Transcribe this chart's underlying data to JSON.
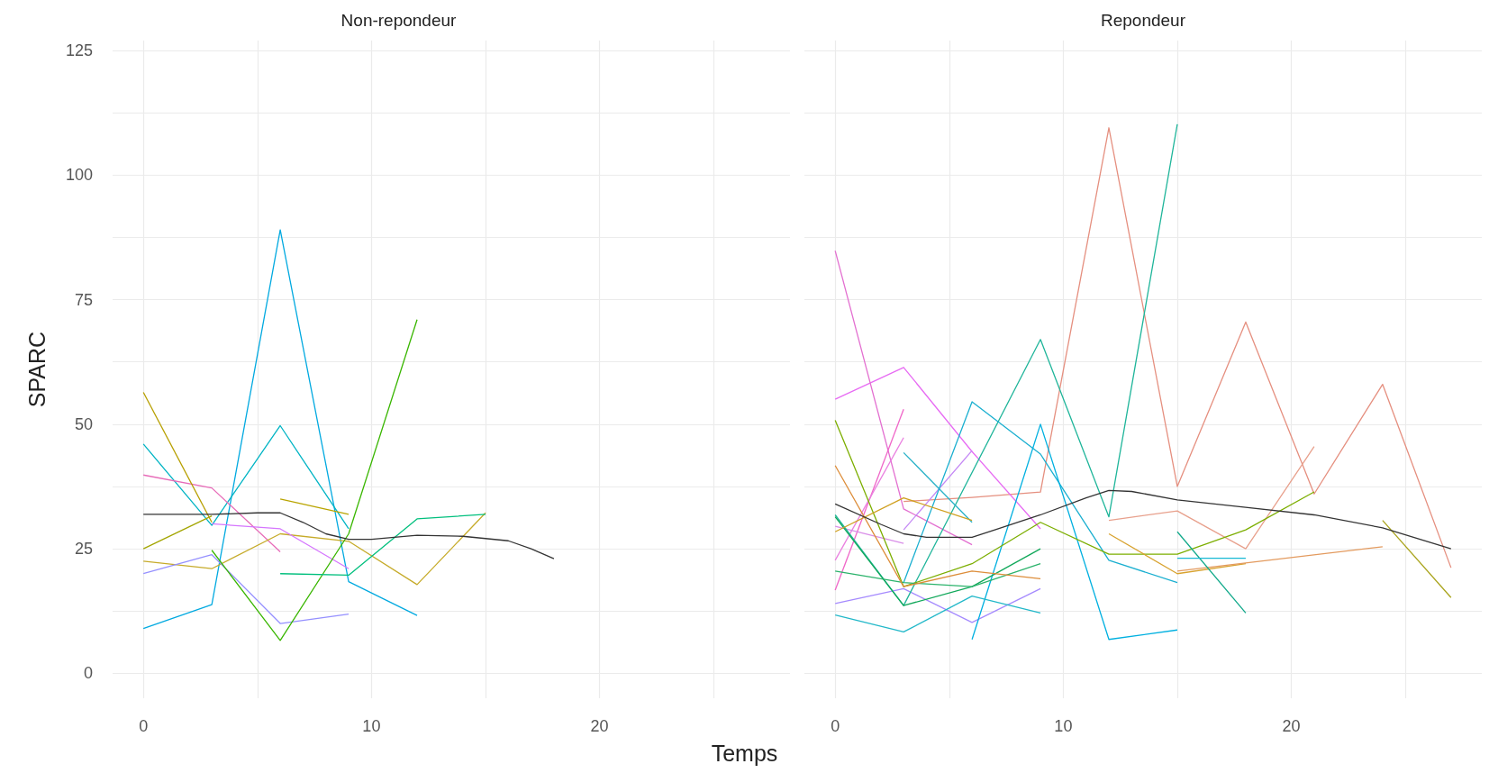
{
  "chart_data": [
    {
      "type": "line",
      "title": "Non-repondeur",
      "xlabel": "Temps",
      "ylabel": "SPARC",
      "xlim": [
        -1.35,
        28.35
      ],
      "xticks": [
        0,
        {
          "value": 5,
          "label": null
        },
        10,
        {
          "value": 15,
          "label": null
        },
        20,
        {
          "value": 25,
          "label": null
        }
      ],
      "ylim": [
        -5,
        127
      ],
      "yticks": [
        0,
        {
          "value": 12.5,
          "label": null
        },
        25,
        {
          "value": 37.5,
          "label": null
        },
        50,
        {
          "value": 62.5,
          "label": null
        },
        75,
        {
          "value": 87.5,
          "label": null
        },
        100,
        {
          "value": 112.5,
          "label": null
        },
        125
      ],
      "grid": true,
      "marker": "none",
      "line_style": "solid",
      "series": [
        {
          "color": "#00a9e0",
          "x": [
            0,
            3,
            6,
            9,
            12
          ],
          "values": [
            9,
            13.8,
            89,
            18.4,
            11.6
          ]
        },
        {
          "color": "#00b4c4",
          "x": [
            0,
            3,
            6,
            9
          ],
          "values": [
            46,
            29.7,
            49.7,
            29
          ]
        },
        {
          "color": "#e76bb8",
          "x": [
            0,
            3,
            6
          ],
          "values": [
            39.8,
            37.2,
            24.4
          ]
        },
        {
          "color": "#b79f00",
          "x": [
            0,
            3
          ],
          "values": [
            56.4,
            30.3
          ]
        },
        {
          "color": "#a3a500",
          "x": [
            0,
            3
          ],
          "values": [
            25,
            31.6
          ]
        },
        {
          "color": "#b9a400",
          "x": [
            6,
            9
          ],
          "values": [
            35,
            31.9
          ]
        },
        {
          "color": "#c6ab2a",
          "x": [
            0,
            3,
            6,
            9,
            12,
            15
          ],
          "values": [
            22.5,
            21,
            28,
            26.5,
            17.8,
            32.2
          ]
        },
        {
          "color": "#9590ff",
          "x": [
            0,
            3,
            6,
            9
          ],
          "values": [
            20,
            23.8,
            10,
            11.9
          ]
        },
        {
          "color": "#d575fe",
          "x": [
            3,
            6,
            9
          ],
          "values": [
            30,
            29,
            21
          ]
        },
        {
          "color": "#39b600",
          "x": [
            3,
            6,
            9,
            12
          ],
          "values": [
            24.7,
            6.6,
            28,
            71
          ]
        },
        {
          "color": "#00bf7d",
          "x": [
            6,
            9,
            12,
            15
          ],
          "values": [
            20,
            19.7,
            31,
            31.9
          ]
        },
        {
          "color": "#333333",
          "x": [
            0,
            3,
            5,
            6,
            7,
            8,
            9,
            10,
            12,
            14,
            16,
            17,
            18
          ],
          "values": [
            31.9,
            31.9,
            32.2,
            32.2,
            30.3,
            28,
            26.9,
            26.9,
            27.7,
            27.5,
            26.6,
            25,
            23
          ]
        }
      ]
    },
    {
      "type": "line",
      "title": "Repondeur",
      "xlim": [
        -1.35,
        28.35
      ],
      "xticks": [
        0,
        {
          "value": 5,
          "label": null
        },
        10,
        {
          "value": 15,
          "label": null
        },
        20,
        {
          "value": 25,
          "label": null
        }
      ],
      "ylim": [
        -5,
        127
      ],
      "yticks": [
        0,
        {
          "value": 12.5,
          "label": null
        },
        25,
        {
          "value": 37.5,
          "label": null
        },
        50,
        {
          "value": 62.5,
          "label": null
        },
        75,
        {
          "value": 87.5,
          "label": null
        },
        100,
        {
          "value": 112.5,
          "label": null
        },
        125
      ],
      "grid": true,
      "marker": "none",
      "line_style": "solid",
      "tick_labels": "x",
      "series": [
        {
          "color": "#e58f7f",
          "x": [
            3,
            6,
            9,
            12,
            15,
            18,
            21,
            24,
            27
          ],
          "values": [
            34.5,
            35.3,
            36.4,
            109.5,
            37.5,
            70.5,
            36,
            58,
            21.2
          ]
        },
        {
          "color": "#e8a08c",
          "x": [
            12,
            15,
            18,
            21
          ],
          "values": [
            30.7,
            32.6,
            25,
            45.5
          ]
        },
        {
          "color": "#e76bf3",
          "x": [
            0,
            3,
            6,
            9
          ],
          "values": [
            55,
            61.4,
            44.5,
            29
          ]
        },
        {
          "color": "#e36fd0",
          "x": [
            0,
            3,
            6
          ],
          "values": [
            84.8,
            33,
            25.8
          ]
        },
        {
          "color": "#f066c8",
          "x": [
            0,
            3
          ],
          "values": [
            16.7,
            53
          ]
        },
        {
          "color": "#ea7fe0",
          "x": [
            0,
            3
          ],
          "values": [
            22.7,
            47.3
          ]
        },
        {
          "color": "#d98ee8",
          "x": [
            0,
            3
          ],
          "values": [
            29.5,
            26.1
          ]
        },
        {
          "color": "#a58afe",
          "x": [
            0,
            3,
            6,
            9
          ],
          "values": [
            14,
            17,
            10.2,
            17
          ]
        },
        {
          "color": "#c487f5",
          "x": [
            3,
            6
          ],
          "values": [
            28.8,
            44.7
          ]
        },
        {
          "color": "#1fb59a",
          "x": [
            0,
            3,
            9,
            12,
            15
          ],
          "values": [
            31.8,
            13.6,
            67,
            31.4,
            110.2
          ]
        },
        {
          "color": "#2ab2c8",
          "x": [
            3,
            6
          ],
          "values": [
            44.3,
            30.3
          ]
        },
        {
          "color": "#1aafd0",
          "x": [
            3,
            6,
            9,
            12,
            15
          ],
          "values": [
            18.2,
            54.5,
            44,
            22.7,
            18.2
          ]
        },
        {
          "color": "#00b0e0",
          "x": [
            6,
            9,
            12,
            15
          ],
          "values": [
            6.8,
            50,
            6.8,
            8.7
          ]
        },
        {
          "color": "#22b8c9",
          "x": [
            0,
            3,
            6,
            9
          ],
          "values": [
            11.7,
            8.3,
            15.5,
            12.1
          ]
        },
        {
          "color": "#7cae00",
          "x": [
            0,
            3,
            6,
            9,
            12,
            15,
            18,
            21
          ],
          "values": [
            50.8,
            17.4,
            22,
            30.3,
            23.9,
            23.9,
            28.8,
            36.4
          ]
        },
        {
          "color": "#11a85a",
          "x": [
            0,
            3,
            6,
            9
          ],
          "values": [
            31.4,
            13.6,
            17.4,
            25
          ]
        },
        {
          "color": "#2bb36b",
          "x": [
            0,
            3,
            6,
            9
          ],
          "values": [
            20.5,
            18.2,
            17.4,
            22
          ]
        },
        {
          "color": "#dd8d3a",
          "x": [
            0,
            3,
            6,
            9
          ],
          "values": [
            41.7,
            17.4,
            20.5,
            19
          ]
        },
        {
          "color": "#d0a020",
          "x": [
            0,
            3,
            6
          ],
          "values": [
            28.4,
            35.2,
            30.7
          ]
        },
        {
          "color": "#d8a22e",
          "x": [
            12,
            15,
            18
          ],
          "values": [
            28,
            20,
            22
          ]
        },
        {
          "color": "#e39a5e",
          "x": [
            15,
            24
          ],
          "values": [
            20.5,
            25.4
          ]
        },
        {
          "color": "#10a98a",
          "x": [
            15,
            18
          ],
          "values": [
            28.4,
            12.1
          ]
        },
        {
          "color": "#16b8d4",
          "x": [
            15,
            18
          ],
          "values": [
            23.1,
            23.1
          ]
        },
        {
          "color": "#a9a31a",
          "x": [
            24,
            27
          ],
          "values": [
            30.7,
            15.2
          ]
        },
        {
          "color": "#333333",
          "x": [
            0,
            2,
            3,
            4,
            6,
            7,
            9,
            11,
            12,
            13,
            15,
            18,
            21,
            24,
            27
          ],
          "values": [
            34,
            29.9,
            28,
            27.3,
            27.3,
            28.8,
            31.8,
            35.2,
            36.7,
            36.5,
            34.8,
            33.3,
            31.8,
            29.2,
            25
          ]
        }
      ]
    }
  ]
}
